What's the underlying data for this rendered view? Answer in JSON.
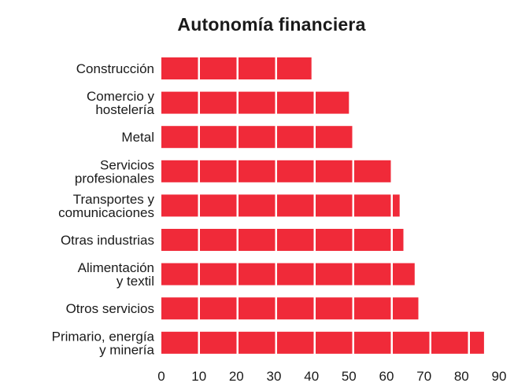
{
  "chart_data": {
    "type": "bar",
    "orientation": "horizontal",
    "title": "Autonomía financiera",
    "categories": [
      [
        "Construcción"
      ],
      [
        "Comercio y",
        "hostelería"
      ],
      [
        "Metal"
      ],
      [
        "Servicios",
        "profesionales"
      ],
      [
        "Transportes y",
        "comunicaciones"
      ],
      [
        "Otras industrias"
      ],
      [
        "Alimentación",
        "y textil"
      ],
      [
        "Otros servicios"
      ],
      [
        "Primario, energía",
        "y minería"
      ]
    ],
    "values": [
      40,
      50,
      51.5,
      61.5,
      63.5,
      64.5,
      67.5,
      68.5,
      86
    ],
    "xlim": [
      0,
      90
    ],
    "xticks": [
      "0",
      "10",
      "20",
      "30",
      "40",
      "50",
      "60",
      "70",
      "80",
      "90"
    ],
    "bar_color": "#f02a39",
    "segment_color": "#ffffff",
    "grid": false,
    "legend": false
  }
}
